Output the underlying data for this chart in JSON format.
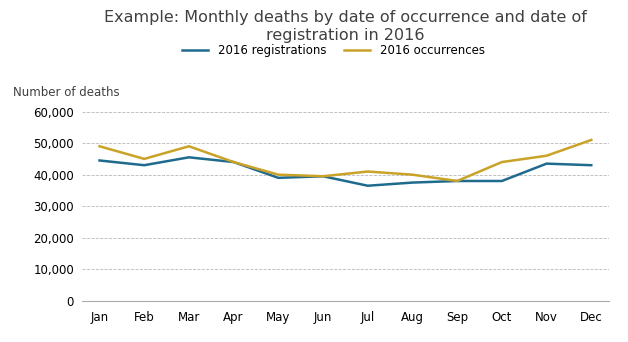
{
  "title": "Example: Monthly deaths by date of occurrence and date of\nregistration in 2016",
  "ylabel": "Number of deaths",
  "months": [
    "Jan",
    "Feb",
    "Mar",
    "Apr",
    "May",
    "Jun",
    "Jul",
    "Aug",
    "Sep",
    "Oct",
    "Nov",
    "Dec"
  ],
  "registrations": [
    44500,
    43000,
    45500,
    44000,
    39000,
    39500,
    36500,
    37500,
    38000,
    38000,
    43500,
    43000
  ],
  "occurrences": [
    49000,
    45000,
    49000,
    44000,
    40000,
    39500,
    41000,
    40000,
    38000,
    44000,
    46000,
    51000
  ],
  "reg_color": "#1f6b8e",
  "occ_color": "#c9a227",
  "reg_label": "2016 registrations",
  "occ_label": "2016 occurrences",
  "ylim": [
    0,
    65000
  ],
  "yticks": [
    0,
    10000,
    20000,
    30000,
    40000,
    50000,
    60000
  ],
  "background_color": "#ffffff",
  "grid_color": "#b8b8b8",
  "title_fontsize": 11.5,
  "label_fontsize": 8.5,
  "tick_fontsize": 8.5,
  "legend_fontsize": 8.5,
  "line_width": 1.8
}
